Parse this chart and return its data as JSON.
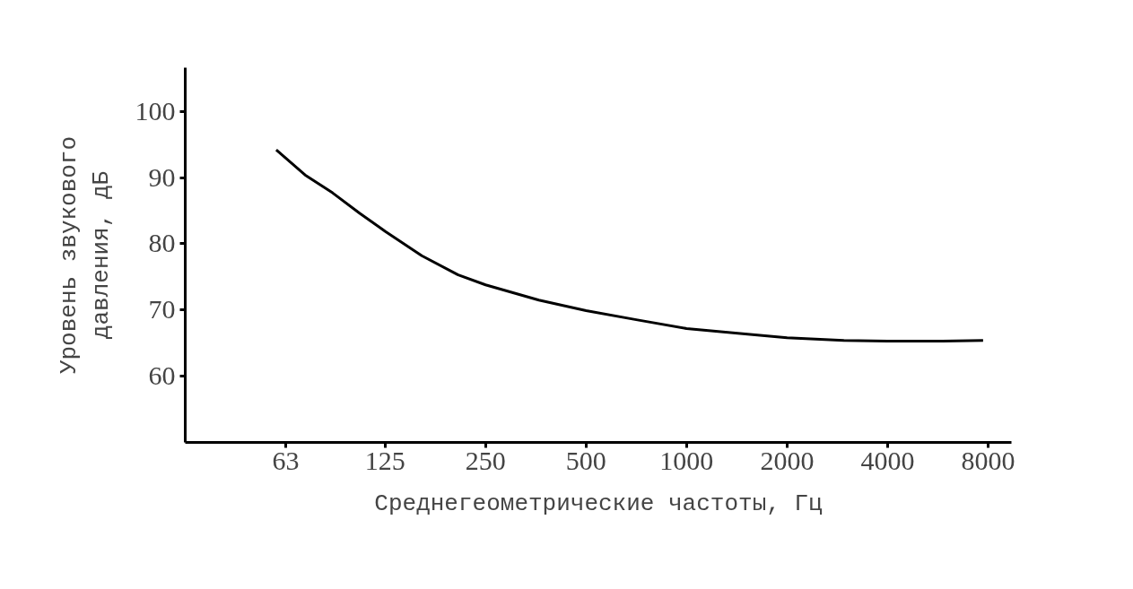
{
  "chart_data": {
    "type": "line",
    "xlabel": "Среднегеометрические частоты, Гц",
    "ylabel": "Уровень звукового\nдавления, дБ",
    "log": "x",
    "grid": false,
    "line_style": "solid",
    "marker": "none",
    "xlim": [
      31.5,
      9400
    ],
    "xticks": [
      63,
      125,
      250,
      500,
      1000,
      2000,
      4000,
      8000
    ],
    "ylim": [
      50,
      106.6
    ],
    "yticks": [
      60,
      70,
      80,
      90,
      100
    ],
    "x": [
      59,
      72,
      87,
      105,
      125,
      161,
      207,
      250,
      361,
      500,
      713,
      1000,
      1497,
      2000,
      2960,
      4000,
      5850,
      7730
    ],
    "series": [
      {
        "color": "#000000",
        "values": [
          94.2,
          90.4,
          87.7,
          84.6,
          81.9,
          78.2,
          75.3,
          73.8,
          71.5,
          69.9,
          68.5,
          67.2,
          66.4,
          65.8,
          65.4,
          65.3,
          65.3,
          65.4
        ]
      }
    ]
  }
}
